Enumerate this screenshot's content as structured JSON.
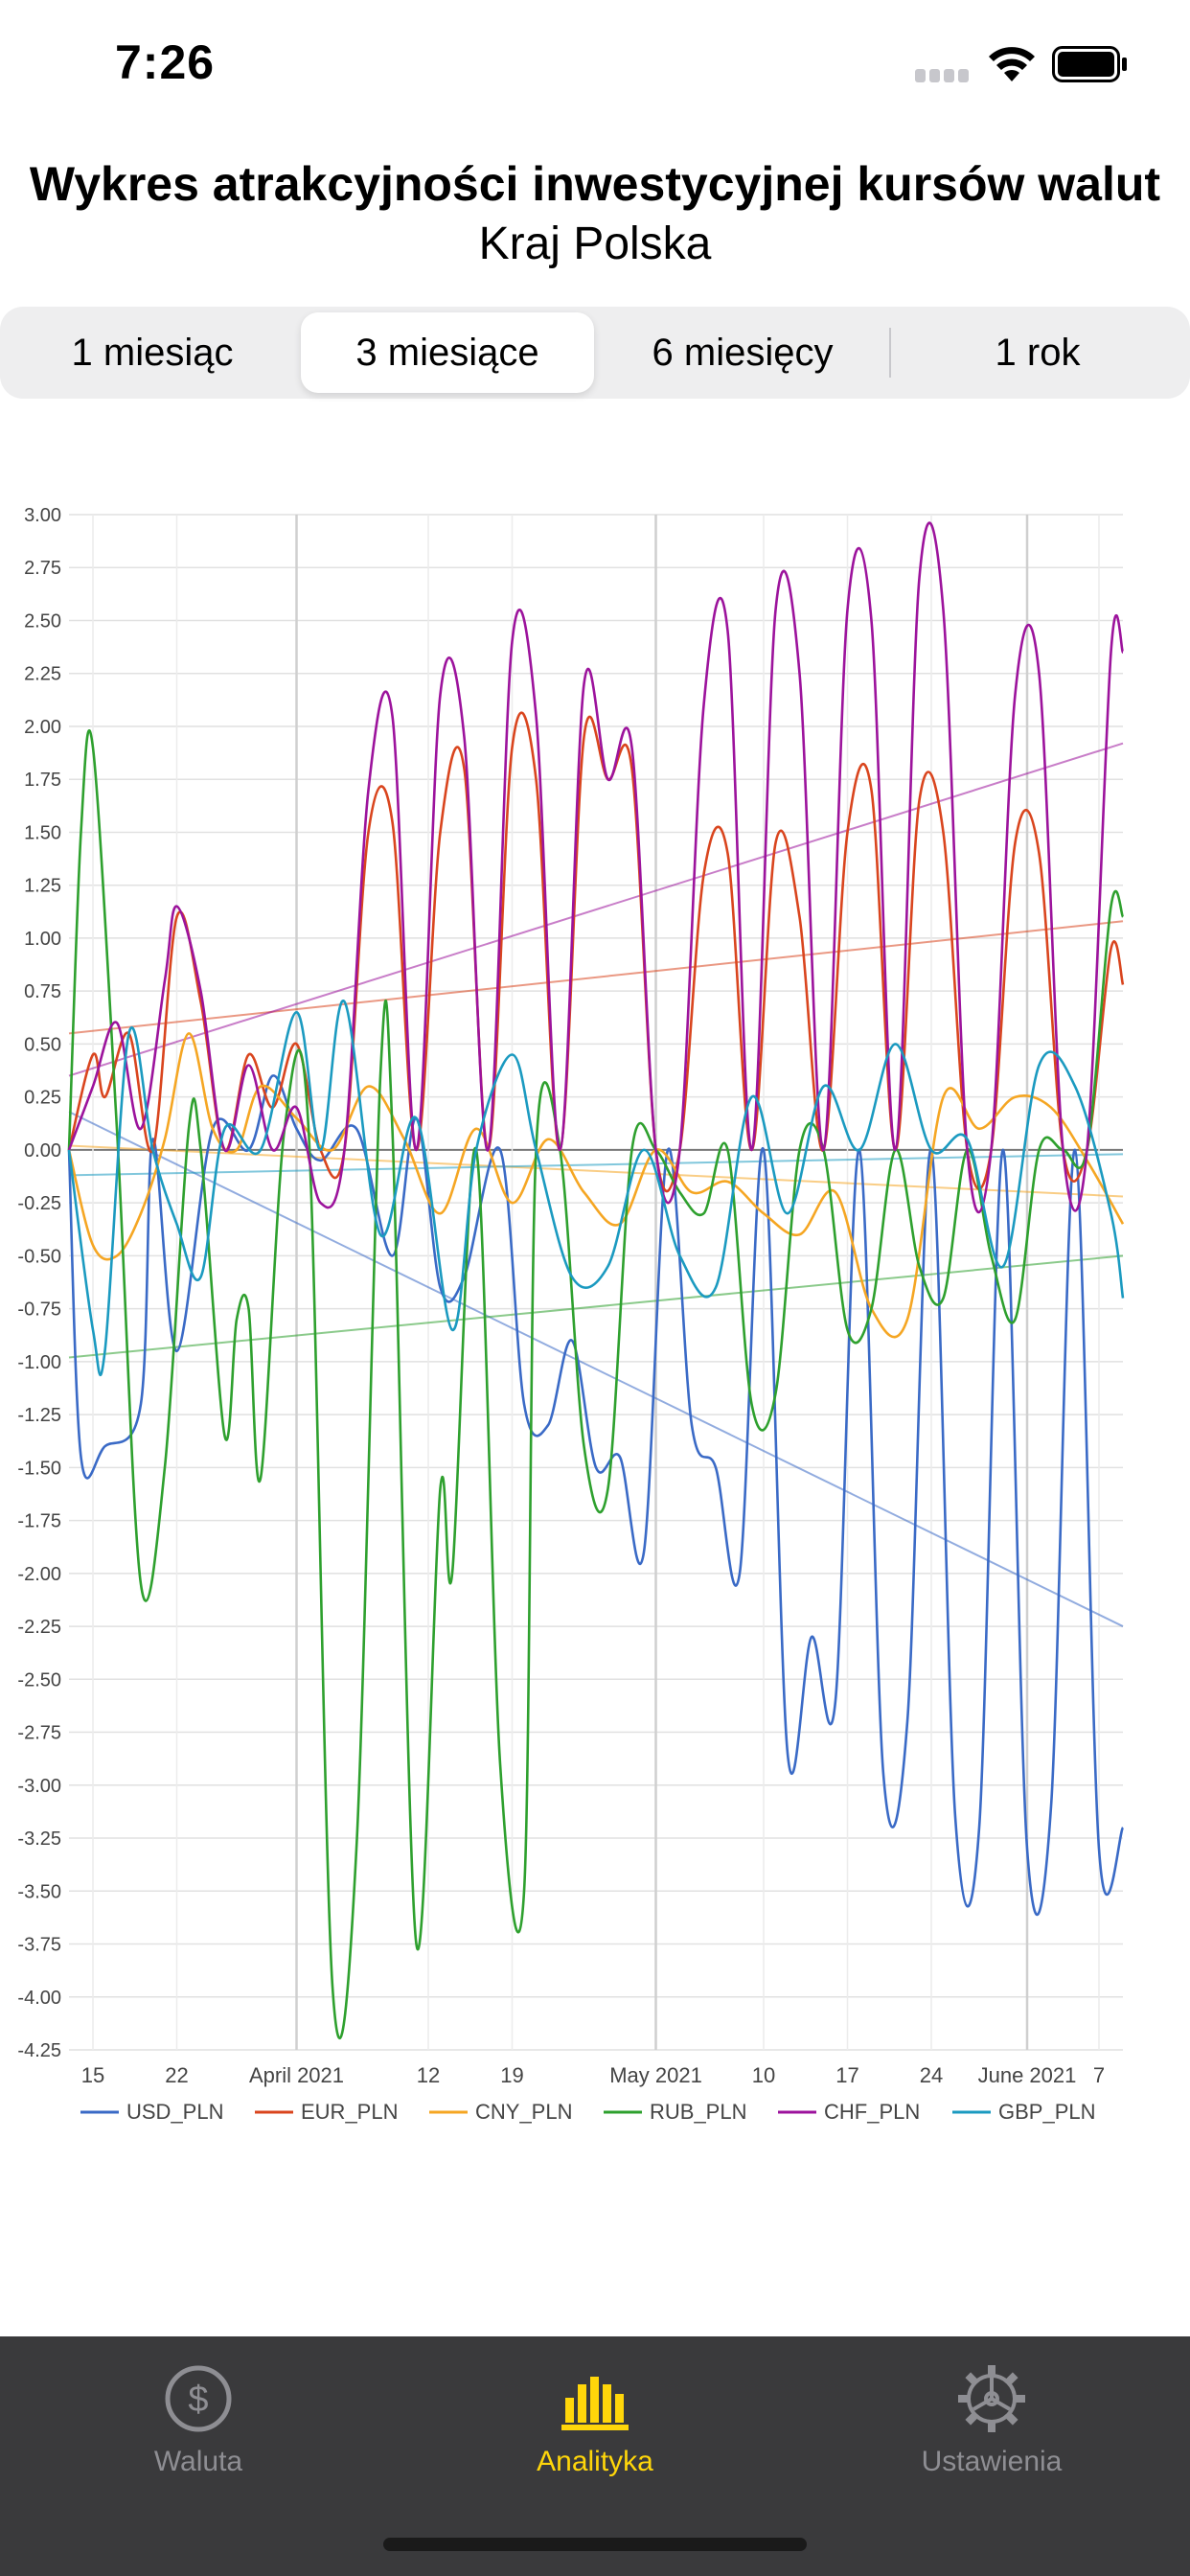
{
  "status": {
    "time": "7:26"
  },
  "header": {
    "title": "Wykres atrakcyjności inwestycyjnej kursów walut",
    "subtitle": "Kraj  Polska"
  },
  "segments": [
    {
      "label": "1 miesiąc",
      "active": false
    },
    {
      "label": "3 miesiące",
      "active": true
    },
    {
      "label": "6 miesięcy",
      "active": false
    },
    {
      "label": "1 rok",
      "active": false
    }
  ],
  "tabs": [
    {
      "label": "Waluta",
      "icon": "dollar-circle-icon",
      "active": false
    },
    {
      "label": "Analityka",
      "icon": "bar-chart-icon",
      "active": true
    },
    {
      "label": "Ustawienia",
      "icon": "gear-icon",
      "active": false
    }
  ],
  "chart_data": {
    "type": "line",
    "title": "",
    "xlabel": "",
    "ylabel": "",
    "ylim": [
      -4.25,
      3.0
    ],
    "yticks": [
      "3.00",
      "2.75",
      "2.50",
      "2.25",
      "2.00",
      "1.75",
      "1.50",
      "1.25",
      "1.00",
      "0.75",
      "0.50",
      "0.25",
      "0.00",
      "-0.25",
      "-0.50",
      "-0.75",
      "-1.00",
      "-1.25",
      "-1.50",
      "-1.75",
      "-2.00",
      "-2.25",
      "-2.50",
      "-2.75",
      "-3.00",
      "-3.25",
      "-3.50",
      "-3.75",
      "-4.00",
      "-4.25"
    ],
    "x_range": [
      "2021-03-13",
      "2021-06-09"
    ],
    "xticks": [
      {
        "date": "2021-03-15",
        "label": "15"
      },
      {
        "date": "2021-03-22",
        "label": "22"
      },
      {
        "date": "2021-04-01",
        "label": "April 2021"
      },
      {
        "date": "2021-04-12",
        "label": "12"
      },
      {
        "date": "2021-04-19",
        "label": "19"
      },
      {
        "date": "2021-05-01",
        "label": "May 2021"
      },
      {
        "date": "2021-05-10",
        "label": "10"
      },
      {
        "date": "2021-05-17",
        "label": "17"
      },
      {
        "date": "2021-05-24",
        "label": "24"
      },
      {
        "date": "2021-06-01",
        "label": "June 2021"
      },
      {
        "date": "2021-06-07",
        "label": "7"
      }
    ],
    "grid": true,
    "legend": "bottom",
    "series": [
      {
        "name": "USD_PLN",
        "color": "#3a6ac6",
        "x": [
          "2021-03-13",
          "2021-03-14",
          "2021-03-16",
          "2021-03-19",
          "2021-03-20",
          "2021-03-22",
          "2021-03-25",
          "2021-03-28",
          "2021-03-30",
          "2021-04-01",
          "2021-04-03",
          "2021-04-06",
          "2021-04-09",
          "2021-04-11",
          "2021-04-13",
          "2021-04-15",
          "2021-04-18",
          "2021-04-20",
          "2021-04-22",
          "2021-04-24",
          "2021-04-26",
          "2021-04-28",
          "2021-04-30",
          "2021-05-02",
          "2021-05-04",
          "2021-05-06",
          "2021-05-08",
          "2021-05-10",
          "2021-05-12",
          "2021-05-14",
          "2021-05-16",
          "2021-05-18",
          "2021-05-20",
          "2021-05-22",
          "2021-05-24",
          "2021-05-26",
          "2021-05-28",
          "2021-05-30",
          "2021-06-01",
          "2021-06-03",
          "2021-06-05",
          "2021-06-07",
          "2021-06-09"
        ],
        "y": [
          0.0,
          -1.45,
          -1.4,
          -1.2,
          0.05,
          -0.95,
          0.1,
          0.0,
          0.35,
          0.1,
          -0.05,
          0.1,
          -0.5,
          0.15,
          -0.65,
          -0.6,
          0.0,
          -1.2,
          -1.3,
          -0.9,
          -1.5,
          -1.45,
          -1.9,
          0.0,
          -1.3,
          -1.5,
          -2.0,
          0.0,
          -2.85,
          -2.3,
          -2.6,
          0.0,
          -2.95,
          -2.7,
          0.0,
          -3.15,
          -3.2,
          0.0,
          -3.3,
          -3.1,
          0.0,
          -3.3,
          -3.2
        ],
        "trend": [
          0.18,
          -2.25
        ]
      },
      {
        "name": "EUR_PLN",
        "color": "#d9451e",
        "x": [
          "2021-03-13",
          "2021-03-15",
          "2021-03-16",
          "2021-03-18",
          "2021-03-20",
          "2021-03-22",
          "2021-03-24",
          "2021-03-26",
          "2021-03-28",
          "2021-03-30",
          "2021-04-01",
          "2021-04-03",
          "2021-04-05",
          "2021-04-07",
          "2021-04-09",
          "2021-04-11",
          "2021-04-13",
          "2021-04-15",
          "2021-04-17",
          "2021-04-19",
          "2021-04-21",
          "2021-04-23",
          "2021-04-25",
          "2021-04-27",
          "2021-04-29",
          "2021-05-01",
          "2021-05-03",
          "2021-05-05",
          "2021-05-07",
          "2021-05-09",
          "2021-05-11",
          "2021-05-13",
          "2021-05-15",
          "2021-05-17",
          "2021-05-19",
          "2021-05-21",
          "2021-05-23",
          "2021-05-25",
          "2021-05-27",
          "2021-05-29",
          "2021-05-31",
          "2021-06-02",
          "2021-06-04",
          "2021-06-06",
          "2021-06-08",
          "2021-06-09"
        ],
        "y": [
          0.0,
          0.45,
          0.25,
          0.55,
          0.0,
          1.1,
          0.7,
          0.0,
          0.45,
          0.2,
          0.5,
          0.0,
          0.0,
          1.5,
          1.55,
          0.0,
          1.5,
          1.8,
          0.0,
          1.9,
          1.75,
          0.0,
          1.95,
          1.75,
          1.8,
          0.0,
          0.0,
          1.3,
          1.4,
          0.0,
          1.45,
          1.1,
          0.0,
          1.5,
          1.7,
          0.0,
          1.65,
          1.5,
          0.0,
          0.0,
          1.45,
          1.4,
          0.0,
          0.0,
          0.95,
          0.78
        ],
        "trend": [
          0.55,
          1.08
        ]
      },
      {
        "name": "CNY_PLN",
        "color": "#f5a623",
        "x": [
          "2021-03-13",
          "2021-03-15",
          "2021-03-17",
          "2021-03-19",
          "2021-03-21",
          "2021-03-23",
          "2021-03-25",
          "2021-03-27",
          "2021-03-29",
          "2021-04-01",
          "2021-04-04",
          "2021-04-07",
          "2021-04-10",
          "2021-04-13",
          "2021-04-16",
          "2021-04-19",
          "2021-04-22",
          "2021-04-25",
          "2021-04-28",
          "2021-05-01",
          "2021-05-04",
          "2021-05-07",
          "2021-05-10",
          "2021-05-13",
          "2021-05-16",
          "2021-05-19",
          "2021-05-22",
          "2021-05-25",
          "2021-05-28",
          "2021-05-31",
          "2021-06-03",
          "2021-06-06",
          "2021-06-09"
        ],
        "y": [
          0.0,
          -0.45,
          -0.5,
          -0.3,
          0.05,
          0.55,
          0.1,
          0.0,
          0.3,
          0.15,
          0.0,
          0.3,
          0.05,
          -0.3,
          0.1,
          -0.25,
          0.05,
          -0.2,
          -0.35,
          0.0,
          -0.2,
          -0.15,
          -0.3,
          -0.4,
          -0.2,
          -0.75,
          -0.8,
          0.25,
          0.1,
          0.25,
          0.2,
          -0.05,
          -0.35
        ],
        "trend": [
          0.02,
          -0.22
        ]
      },
      {
        "name": "RUB_PLN",
        "color": "#2ea02e",
        "x": [
          "2021-03-13",
          "2021-03-14",
          "2021-03-15",
          "2021-03-17",
          "2021-03-19",
          "2021-03-21",
          "2021-03-23",
          "2021-03-24",
          "2021-03-26",
          "2021-03-27",
          "2021-03-28",
          "2021-03-29",
          "2021-03-31",
          "2021-04-02",
          "2021-04-04",
          "2021-04-06",
          "2021-04-08",
          "2021-04-09",
          "2021-04-11",
          "2021-04-13",
          "2021-04-14",
          "2021-04-16",
          "2021-04-18",
          "2021-04-20",
          "2021-04-21",
          "2021-04-23",
          "2021-04-25",
          "2021-04-27",
          "2021-04-29",
          "2021-05-01",
          "2021-05-03",
          "2021-05-05",
          "2021-05-07",
          "2021-05-09",
          "2021-05-11",
          "2021-05-13",
          "2021-05-15",
          "2021-05-17",
          "2021-05-19",
          "2021-05-21",
          "2021-05-23",
          "2021-05-25",
          "2021-05-27",
          "2021-05-29",
          "2021-05-31",
          "2021-06-02",
          "2021-06-04",
          "2021-06-06",
          "2021-06-08",
          "2021-06-09"
        ],
        "y": [
          0.0,
          1.5,
          1.9,
          0.1,
          -2.05,
          -1.5,
          0.1,
          0.0,
          -1.35,
          -0.8,
          -0.75,
          -1.55,
          0.1,
          0.1,
          -3.95,
          -3.3,
          0.35,
          0.1,
          -3.75,
          -1.6,
          -2.0,
          0.0,
          -2.9,
          -3.5,
          0.0,
          0.0,
          -1.4,
          -1.6,
          0.0,
          0.0,
          -0.2,
          -0.3,
          0.0,
          -1.2,
          -1.15,
          0.0,
          0.0,
          -0.85,
          -0.75,
          0.0,
          -0.55,
          -0.7,
          0.0,
          -0.5,
          -0.8,
          0.0,
          0.0,
          0.0,
          1.15,
          1.1
        ],
        "trend": [
          -0.98,
          -0.5
        ]
      },
      {
        "name": "CHF_PLN",
        "color": "#9c139c",
        "x": [
          "2021-03-13",
          "2021-03-15",
          "2021-03-17",
          "2021-03-19",
          "2021-03-21",
          "2021-03-22",
          "2021-03-24",
          "2021-03-26",
          "2021-03-28",
          "2021-03-30",
          "2021-04-01",
          "2021-04-03",
          "2021-04-05",
          "2021-04-07",
          "2021-04-09",
          "2021-04-11",
          "2021-04-13",
          "2021-04-15",
          "2021-04-17",
          "2021-04-19",
          "2021-04-21",
          "2021-04-23",
          "2021-04-25",
          "2021-04-27",
          "2021-04-29",
          "2021-05-01",
          "2021-05-03",
          "2021-05-05",
          "2021-05-07",
          "2021-05-09",
          "2021-05-11",
          "2021-05-13",
          "2021-05-15",
          "2021-05-17",
          "2021-05-19",
          "2021-05-21",
          "2021-05-23",
          "2021-05-25",
          "2021-05-27",
          "2021-05-29",
          "2021-05-31",
          "2021-06-02",
          "2021-06-04",
          "2021-06-06",
          "2021-06-08",
          "2021-06-09"
        ],
        "y": [
          0.0,
          0.3,
          0.6,
          0.1,
          0.8,
          1.15,
          0.75,
          0.0,
          0.4,
          0.0,
          0.2,
          -0.25,
          0.0,
          1.7,
          2.05,
          0.0,
          2.15,
          1.95,
          0.0,
          2.4,
          2.05,
          0.0,
          2.2,
          1.75,
          1.9,
          0.0,
          0.0,
          2.1,
          2.45,
          0.0,
          2.55,
          2.25,
          0.0,
          2.55,
          2.5,
          0.0,
          2.7,
          2.55,
          0.0,
          0.0,
          2.15,
          2.25,
          0.0,
          0.0,
          2.35,
          2.35
        ],
        "trend": [
          0.35,
          1.92
        ]
      },
      {
        "name": "GBP_PLN",
        "color": "#1b9ac0",
        "x": [
          "2021-03-13",
          "2021-03-15",
          "2021-03-16",
          "2021-03-18",
          "2021-03-20",
          "2021-03-22",
          "2021-03-24",
          "2021-03-26",
          "2021-03-29",
          "2021-04-01",
          "2021-04-03",
          "2021-04-05",
          "2021-04-08",
          "2021-04-11",
          "2021-04-14",
          "2021-04-16",
          "2021-04-19",
          "2021-04-21",
          "2021-04-24",
          "2021-04-27",
          "2021-04-30",
          "2021-05-03",
          "2021-05-06",
          "2021-05-09",
          "2021-05-12",
          "2021-05-15",
          "2021-05-18",
          "2021-05-21",
          "2021-05-24",
          "2021-05-27",
          "2021-05-30",
          "2021-06-02",
          "2021-06-05",
          "2021-06-08",
          "2021-06-09"
        ],
        "y": [
          0.0,
          -0.85,
          -0.95,
          0.55,
          0.0,
          -0.35,
          -0.6,
          0.1,
          0.0,
          0.65,
          0.0,
          0.7,
          -0.4,
          0.15,
          -0.85,
          0.0,
          0.45,
          0.0,
          -0.6,
          -0.55,
          0.0,
          -0.5,
          -0.65,
          0.25,
          -0.3,
          0.3,
          0.0,
          0.5,
          0.0,
          0.05,
          -0.55,
          0.4,
          0.3,
          -0.3,
          -0.7
        ],
        "trend": [
          -0.12,
          -0.02
        ]
      }
    ]
  }
}
